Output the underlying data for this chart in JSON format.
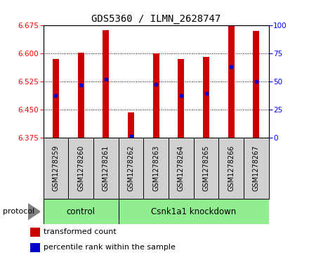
{
  "title": "GDS5360 / ILMN_2628747",
  "samples": [
    "GSM1278259",
    "GSM1278260",
    "GSM1278261",
    "GSM1278262",
    "GSM1278263",
    "GSM1278264",
    "GSM1278265",
    "GSM1278266",
    "GSM1278267"
  ],
  "bar_tops": [
    6.585,
    6.602,
    6.663,
    6.442,
    6.601,
    6.585,
    6.591,
    6.675,
    6.66
  ],
  "bar_bottom": 6.375,
  "percentile_values": [
    6.487,
    6.516,
    6.531,
    6.378,
    6.517,
    6.488,
    6.493,
    6.565,
    6.525
  ],
  "ylim_left": [
    6.375,
    6.675
  ],
  "ylim_right": [
    0,
    100
  ],
  "yticks_left": [
    6.375,
    6.45,
    6.525,
    6.6,
    6.675
  ],
  "yticks_right": [
    0,
    25,
    50,
    75,
    100
  ],
  "bar_color": "#cc0000",
  "dot_color": "#0000cc",
  "control_label": "control",
  "knockdown_label": "Csnk1a1 knockdown",
  "control_count": 3,
  "protocol_label": "protocol",
  "legend_bar_label": "transformed count",
  "legend_dot_label": "percentile rank within the sample",
  "plot_bg": "#ffffff",
  "group_box_color": "#90EE90",
  "label_box_color": "#d0d0d0",
  "bar_width": 0.25
}
